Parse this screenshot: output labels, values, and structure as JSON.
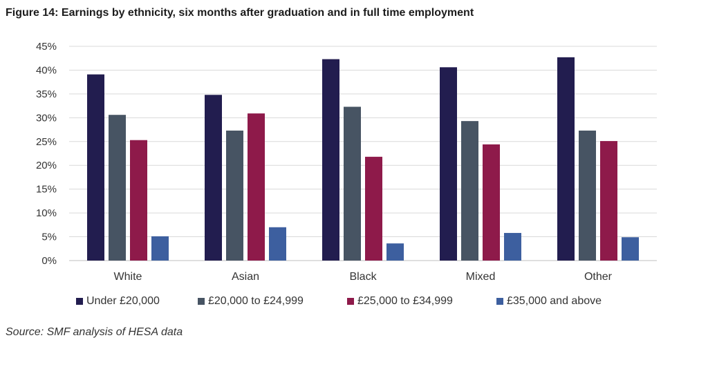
{
  "title": "Figure 14: Earnings by ethnicity, six months after graduation and in full time employment",
  "source": "Source: SMF analysis of HESA data",
  "chart_data": {
    "type": "bar",
    "categories": [
      "White",
      "Asian",
      "Black",
      "Mixed",
      "Other"
    ],
    "series": [
      {
        "name": "Under £20,000",
        "color": "#221d4f",
        "values": [
          39.1,
          34.8,
          42.3,
          40.6,
          42.7
        ]
      },
      {
        "name": "£20,000 to £24,999",
        "color": "#475463",
        "values": [
          30.6,
          27.3,
          32.3,
          29.3,
          27.3
        ]
      },
      {
        "name": "£25,000 to £34,999",
        "color": "#8e1a4a",
        "values": [
          25.3,
          30.9,
          21.8,
          24.4,
          25.1
        ]
      },
      {
        "name": "£35,000 and above",
        "color": "#3d5f9f",
        "values": [
          5.1,
          7.0,
          3.6,
          5.8,
          4.9
        ]
      }
    ],
    "ylim": [
      0,
      45
    ],
    "yticks": [
      "0%",
      "5%",
      "10%",
      "15%",
      "20%",
      "25%",
      "30%",
      "35%",
      "40%",
      "45%"
    ],
    "grid": true,
    "legend_position": "bottom"
  }
}
